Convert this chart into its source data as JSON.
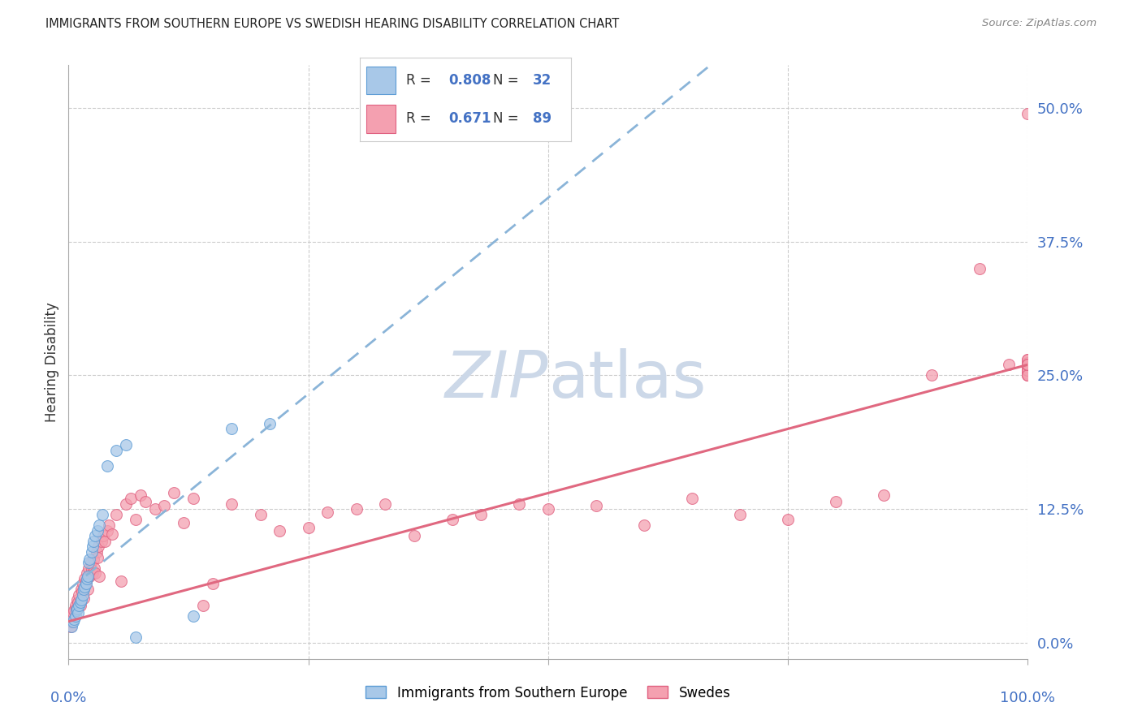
{
  "title": "IMMIGRANTS FROM SOUTHERN EUROPE VS SWEDISH HEARING DISABILITY CORRELATION CHART",
  "source": "Source: ZipAtlas.com",
  "ylabel": "Hearing Disability",
  "ytick_values": [
    0.0,
    12.5,
    25.0,
    37.5,
    50.0
  ],
  "xlim": [
    0.0,
    100.0
  ],
  "ylim": [
    -1.5,
    54.0
  ],
  "legend_R1": "0.808",
  "legend_N1": "32",
  "legend_R2": "0.671",
  "legend_N2": "89",
  "color_blue": "#a8c8e8",
  "color_pink": "#f4a0b0",
  "color_blue_edge": "#5b9bd5",
  "color_pink_edge": "#e06080",
  "color_blue_line": "#8ab4d8",
  "color_pink_line": "#e06880",
  "watermark_color": "#ccd8e8",
  "blue_x": [
    0.3,
    0.5,
    0.6,
    0.7,
    0.8,
    0.9,
    1.0,
    1.1,
    1.2,
    1.3,
    1.5,
    1.6,
    1.7,
    1.8,
    1.9,
    2.0,
    2.1,
    2.2,
    2.4,
    2.5,
    2.6,
    2.8,
    3.0,
    3.2,
    3.5,
    4.0,
    5.0,
    6.0,
    7.0,
    13.0,
    17.0,
    21.0
  ],
  "blue_y": [
    1.5,
    2.0,
    2.2,
    2.5,
    3.0,
    3.2,
    2.8,
    3.5,
    3.8,
    4.0,
    4.5,
    5.0,
    5.2,
    5.5,
    6.0,
    6.2,
    7.5,
    7.8,
    8.5,
    9.0,
    9.5,
    10.0,
    10.5,
    11.0,
    12.0,
    16.5,
    18.0,
    18.5,
    0.5,
    2.5,
    20.0,
    20.5
  ],
  "pink_x": [
    0.2,
    0.3,
    0.4,
    0.5,
    0.6,
    0.7,
    0.8,
    0.9,
    1.0,
    1.1,
    1.2,
    1.3,
    1.4,
    1.5,
    1.6,
    1.7,
    1.8,
    1.9,
    2.0,
    2.1,
    2.2,
    2.3,
    2.4,
    2.5,
    2.6,
    2.7,
    2.8,
    2.9,
    3.0,
    3.1,
    3.2,
    3.4,
    3.6,
    3.8,
    4.0,
    4.2,
    4.5,
    5.0,
    5.5,
    6.0,
    6.5,
    7.0,
    7.5,
    8.0,
    9.0,
    10.0,
    11.0,
    12.0,
    13.0,
    14.0,
    15.0,
    17.0,
    20.0,
    22.0,
    25.0,
    27.0,
    30.0,
    33.0,
    36.0,
    40.0,
    43.0,
    47.0,
    50.0,
    55.0,
    60.0,
    65.0,
    70.0,
    75.0,
    80.0,
    85.0,
    90.0,
    95.0,
    98.0,
    100.0,
    100.0,
    100.0,
    100.0,
    100.0,
    100.0,
    100.0,
    100.0,
    100.0,
    100.0,
    100.0,
    100.0,
    100.0,
    100.0,
    100.0,
    100.0
  ],
  "pink_y": [
    1.5,
    2.0,
    2.5,
    2.8,
    3.0,
    3.5,
    3.2,
    4.0,
    3.8,
    4.5,
    3.5,
    5.0,
    4.8,
    5.5,
    4.2,
    6.0,
    5.8,
    6.5,
    5.0,
    7.0,
    6.2,
    7.5,
    6.8,
    6.5,
    7.8,
    7.0,
    6.5,
    8.5,
    8.0,
    9.0,
    6.2,
    9.5,
    10.0,
    9.5,
    10.5,
    11.0,
    10.2,
    12.0,
    5.8,
    13.0,
    13.5,
    11.5,
    13.8,
    13.2,
    12.5,
    12.8,
    14.0,
    11.2,
    13.5,
    3.5,
    5.5,
    13.0,
    12.0,
    10.5,
    10.8,
    12.2,
    12.5,
    13.0,
    10.0,
    11.5,
    12.0,
    13.0,
    12.5,
    12.8,
    11.0,
    13.5,
    12.0,
    11.5,
    13.2,
    13.8,
    25.0,
    35.0,
    26.0,
    25.5,
    26.5,
    25.0,
    26.0,
    25.8,
    25.2,
    26.0,
    25.5,
    26.2,
    25.0,
    26.5,
    25.5,
    26.0,
    25.0,
    26.0,
    49.5
  ],
  "blue_line_x0": 0.0,
  "blue_line_x1": 30.0,
  "blue_line_y0": 1.0,
  "blue_line_y1": 22.0,
  "pink_line_x0": 0.0,
  "pink_line_x1": 100.0,
  "pink_line_y0": 2.0,
  "pink_line_y1": 26.0
}
